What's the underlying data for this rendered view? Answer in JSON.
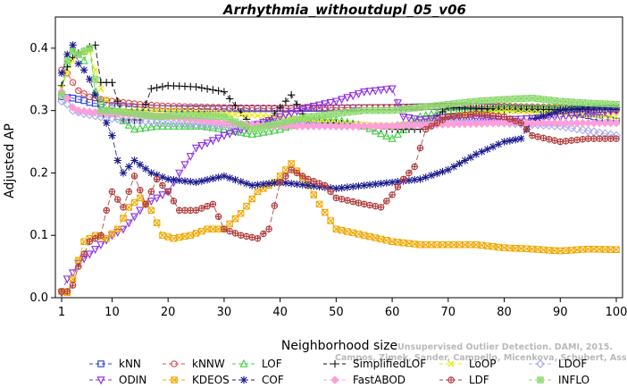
{
  "chart_data": {
    "type": "line",
    "title": "Arrhythmia_withoutdupl_05_v06",
    "xlabel": "Neighborhood size",
    "ylabel": "Adjusted AP",
    "xlim": [
      1,
      100
    ],
    "ylim": [
      0,
      0.45
    ],
    "xticks": [
      "1",
      "10",
      "20",
      "30",
      "40",
      "50",
      "60",
      "70",
      "80",
      "90",
      "100"
    ],
    "yticks": [
      "0.0",
      "0.1",
      "0.2",
      "0.3",
      "0.4"
    ],
    "grid": false,
    "legend_position": "bottom",
    "watermark": [
      "Unsupervised Outlier Detection. DAMI, 2015.",
      "Campos, Zimek, Sander, Campello, Micenkova, Schubert, Assent, Houle"
    ],
    "series": [
      {
        "name": "kNN",
        "color": "#1f3fd6",
        "marker": "square",
        "dash": "6,3",
        "points": [
          [
            1,
            0.322
          ],
          [
            2,
            0.321
          ],
          [
            3,
            0.32
          ],
          [
            4,
            0.318
          ],
          [
            5,
            0.316
          ],
          [
            6,
            0.313
          ],
          [
            8,
            0.31
          ],
          [
            10,
            0.308
          ],
          [
            15,
            0.305
          ],
          [
            20,
            0.303
          ],
          [
            30,
            0.303
          ],
          [
            40,
            0.303
          ],
          [
            50,
            0.304
          ],
          [
            60,
            0.305
          ],
          [
            70,
            0.307
          ],
          [
            80,
            0.305
          ],
          [
            90,
            0.3
          ],
          [
            95,
            0.292
          ],
          [
            100,
            0.283
          ]
        ]
      },
      {
        "name": "kNNW",
        "color": "#d84a4a",
        "marker": "circle",
        "dash": "6,3",
        "points": [
          [
            1,
            0.365
          ],
          [
            2,
            0.36
          ],
          [
            3,
            0.345
          ],
          [
            4,
            0.332
          ],
          [
            6,
            0.322
          ],
          [
            8,
            0.318
          ],
          [
            10,
            0.315
          ],
          [
            15,
            0.31
          ],
          [
            20,
            0.307
          ],
          [
            30,
            0.305
          ],
          [
            40,
            0.304
          ],
          [
            50,
            0.305
          ],
          [
            60,
            0.305
          ],
          [
            70,
            0.307
          ],
          [
            80,
            0.307
          ],
          [
            90,
            0.305
          ],
          [
            100,
            0.3
          ]
        ]
      },
      {
        "name": "LOF",
        "color": "#3fcf3f",
        "marker": "triangle-up",
        "dash": "6,3",
        "points": [
          [
            1,
            0.33
          ],
          [
            2,
            0.375
          ],
          [
            3,
            0.395
          ],
          [
            4,
            0.39
          ],
          [
            5,
            0.38
          ],
          [
            6,
            0.4
          ],
          [
            7,
            0.33
          ],
          [
            9,
            0.3
          ],
          [
            11,
            0.29
          ],
          [
            14,
            0.27
          ],
          [
            18,
            0.275
          ],
          [
            22,
            0.275
          ],
          [
            26,
            0.275
          ],
          [
            30,
            0.27
          ],
          [
            35,
            0.262
          ],
          [
            40,
            0.27
          ],
          [
            45,
            0.285
          ],
          [
            50,
            0.285
          ],
          [
            55,
            0.275
          ],
          [
            60,
            0.255
          ],
          [
            65,
            0.29
          ],
          [
            70,
            0.3
          ],
          [
            80,
            0.305
          ],
          [
            90,
            0.305
          ],
          [
            100,
            0.305
          ]
        ]
      },
      {
        "name": "SimplifiedLOF",
        "color": "#111111",
        "marker": "plus",
        "dash": "6,3",
        "points": [
          [
            1,
            0.34
          ],
          [
            2,
            0.37
          ],
          [
            3,
            0.385
          ],
          [
            4,
            0.392
          ],
          [
            5,
            0.395
          ],
          [
            6,
            0.402
          ],
          [
            7,
            0.405
          ],
          [
            8,
            0.345
          ],
          [
            10,
            0.345
          ],
          [
            12,
            0.285
          ],
          [
            15,
            0.285
          ],
          [
            17,
            0.335
          ],
          [
            20,
            0.34
          ],
          [
            25,
            0.338
          ],
          [
            30,
            0.33
          ],
          [
            35,
            0.275
          ],
          [
            38,
            0.285
          ],
          [
            42,
            0.325
          ],
          [
            45,
            0.28
          ],
          [
            50,
            0.28
          ],
          [
            55,
            0.275
          ],
          [
            60,
            0.27
          ],
          [
            65,
            0.27
          ],
          [
            70,
            0.305
          ],
          [
            80,
            0.302
          ],
          [
            90,
            0.302
          ],
          [
            100,
            0.302
          ]
        ]
      },
      {
        "name": "LoOP",
        "color": "#e8e800",
        "marker": "x",
        "dash": "6,3",
        "points": [
          [
            1,
            0.335
          ],
          [
            2,
            0.36
          ],
          [
            3,
            0.38
          ],
          [
            4,
            0.39
          ],
          [
            6,
            0.395
          ],
          [
            8,
            0.335
          ],
          [
            10,
            0.3
          ],
          [
            12,
            0.3
          ],
          [
            15,
            0.3
          ],
          [
            20,
            0.3
          ],
          [
            30,
            0.295
          ],
          [
            40,
            0.29
          ],
          [
            50,
            0.28
          ],
          [
            60,
            0.275
          ],
          [
            70,
            0.29
          ],
          [
            80,
            0.3
          ],
          [
            90,
            0.295
          ],
          [
            100,
            0.29
          ]
        ]
      },
      {
        "name": "LDOF",
        "color": "#a8a8f0",
        "marker": "diamond",
        "dash": "6,3",
        "points": [
          [
            1,
            0.315
          ],
          [
            2,
            0.31
          ],
          [
            3,
            0.3
          ],
          [
            5,
            0.295
          ],
          [
            8,
            0.29
          ],
          [
            12,
            0.285
          ],
          [
            20,
            0.28
          ],
          [
            30,
            0.275
          ],
          [
            40,
            0.28
          ],
          [
            50,
            0.275
          ],
          [
            60,
            0.275
          ],
          [
            70,
            0.285
          ],
          [
            80,
            0.28
          ],
          [
            90,
            0.275
          ],
          [
            100,
            0.26
          ]
        ]
      },
      {
        "name": "ODIN",
        "color": "#8a2be2",
        "marker": "triangle-down",
        "dash": "6,3",
        "points": [
          [
            1,
            0.008
          ],
          [
            2,
            0.03
          ],
          [
            3,
            0.04
          ],
          [
            4,
            0.055
          ],
          [
            6,
            0.07
          ],
          [
            8,
            0.085
          ],
          [
            10,
            0.1
          ],
          [
            12,
            0.11
          ],
          [
            14,
            0.13
          ],
          [
            16,
            0.15
          ],
          [
            18,
            0.16
          ],
          [
            20,
            0.17
          ],
          [
            22,
            0.2
          ],
          [
            25,
            0.24
          ],
          [
            30,
            0.26
          ],
          [
            35,
            0.275
          ],
          [
            40,
            0.29
          ],
          [
            45,
            0.305
          ],
          [
            50,
            0.315
          ],
          [
            55,
            0.33
          ],
          [
            60,
            0.335
          ],
          [
            62,
            0.29
          ],
          [
            65,
            0.285
          ],
          [
            70,
            0.29
          ],
          [
            80,
            0.285
          ],
          [
            90,
            0.29
          ],
          [
            100,
            0.3
          ]
        ]
      },
      {
        "name": "KDEOS",
        "color": "#f0a800",
        "marker": "square-x",
        "dash": "6,3",
        "points": [
          [
            1,
            0.01
          ],
          [
            2,
            0.008
          ],
          [
            3,
            0.03
          ],
          [
            4,
            0.06
          ],
          [
            5,
            0.09
          ],
          [
            7,
            0.1
          ],
          [
            9,
            0.095
          ],
          [
            11,
            0.11
          ],
          [
            13,
            0.145
          ],
          [
            15,
            0.16
          ],
          [
            17,
            0.14
          ],
          [
            19,
            0.1
          ],
          [
            21,
            0.095
          ],
          [
            24,
            0.1
          ],
          [
            27,
            0.11
          ],
          [
            30,
            0.11
          ],
          [
            33,
            0.135
          ],
          [
            36,
            0.17
          ],
          [
            39,
            0.185
          ],
          [
            42,
            0.215
          ],
          [
            45,
            0.18
          ],
          [
            47,
            0.15
          ],
          [
            50,
            0.11
          ],
          [
            55,
            0.1
          ],
          [
            60,
            0.09
          ],
          [
            65,
            0.085
          ],
          [
            70,
            0.085
          ],
          [
            75,
            0.085
          ],
          [
            80,
            0.08
          ],
          [
            85,
            0.078
          ],
          [
            90,
            0.075
          ],
          [
            95,
            0.078
          ],
          [
            100,
            0.077
          ]
        ]
      },
      {
        "name": "COF",
        "color": "#1a1a8c",
        "marker": "asterisk",
        "dash": "6,3",
        "points": [
          [
            1,
            0.36
          ],
          [
            2,
            0.39
          ],
          [
            3,
            0.405
          ],
          [
            4,
            0.375
          ],
          [
            5,
            0.365
          ],
          [
            6,
            0.35
          ],
          [
            8,
            0.3
          ],
          [
            10,
            0.26
          ],
          [
            11,
            0.22
          ],
          [
            12,
            0.2
          ],
          [
            14,
            0.22
          ],
          [
            17,
            0.2
          ],
          [
            20,
            0.19
          ],
          [
            25,
            0.185
          ],
          [
            30,
            0.195
          ],
          [
            35,
            0.18
          ],
          [
            40,
            0.185
          ],
          [
            45,
            0.18
          ],
          [
            50,
            0.175
          ],
          [
            55,
            0.18
          ],
          [
            60,
            0.185
          ],
          [
            65,
            0.19
          ],
          [
            70,
            0.205
          ],
          [
            75,
            0.23
          ],
          [
            80,
            0.25
          ],
          [
            83,
            0.255
          ],
          [
            85,
            0.285
          ],
          [
            90,
            0.3
          ],
          [
            95,
            0.305
          ],
          [
            100,
            0.305
          ]
        ]
      },
      {
        "name": "FastABOD",
        "color": "#ff9ed8",
        "marker": "diamond-filled",
        "dash": "6,3",
        "points": [
          [
            1,
            0.33
          ],
          [
            2,
            0.32
          ],
          [
            3,
            0.305
          ],
          [
            4,
            0.3
          ],
          [
            6,
            0.298
          ],
          [
            10,
            0.295
          ],
          [
            20,
            0.29
          ],
          [
            30,
            0.28
          ],
          [
            40,
            0.275
          ],
          [
            50,
            0.275
          ],
          [
            60,
            0.275
          ],
          [
            70,
            0.278
          ],
          [
            80,
            0.28
          ],
          [
            90,
            0.28
          ],
          [
            100,
            0.28
          ]
        ]
      },
      {
        "name": "LDF",
        "color": "#b03a3a",
        "marker": "circle-plus",
        "dash": "6,3",
        "points": [
          [
            1,
            0.01
          ],
          [
            2,
            0.01
          ],
          [
            3,
            0.02
          ],
          [
            4,
            0.05
          ],
          [
            6,
            0.09
          ],
          [
            8,
            0.1
          ],
          [
            9,
            0.14
          ],
          [
            10,
            0.17
          ],
          [
            12,
            0.145
          ],
          [
            14,
            0.195
          ],
          [
            16,
            0.15
          ],
          [
            18,
            0.19
          ],
          [
            20,
            0.17
          ],
          [
            22,
            0.14
          ],
          [
            25,
            0.14
          ],
          [
            28,
            0.15
          ],
          [
            30,
            0.11
          ],
          [
            33,
            0.1
          ],
          [
            36,
            0.095
          ],
          [
            38,
            0.11
          ],
          [
            40,
            0.185
          ],
          [
            42,
            0.205
          ],
          [
            45,
            0.19
          ],
          [
            48,
            0.18
          ],
          [
            50,
            0.16
          ],
          [
            55,
            0.15
          ],
          [
            58,
            0.145
          ],
          [
            60,
            0.165
          ],
          [
            62,
            0.19
          ],
          [
            64,
            0.21
          ],
          [
            66,
            0.27
          ],
          [
            70,
            0.29
          ],
          [
            75,
            0.295
          ],
          [
            80,
            0.29
          ],
          [
            83,
            0.28
          ],
          [
            85,
            0.26
          ],
          [
            90,
            0.25
          ],
          [
            95,
            0.255
          ],
          [
            100,
            0.255
          ]
        ]
      },
      {
        "name": "INFLO",
        "color": "#8cd96e",
        "marker": "star-box",
        "dash": "6,3",
        "points": [
          [
            1,
            0.325
          ],
          [
            2,
            0.38
          ],
          [
            3,
            0.395
          ],
          [
            4,
            0.39
          ],
          [
            6,
            0.4
          ],
          [
            8,
            0.3
          ],
          [
            10,
            0.3
          ],
          [
            14,
            0.295
          ],
          [
            18,
            0.29
          ],
          [
            22,
            0.292
          ],
          [
            26,
            0.292
          ],
          [
            30,
            0.29
          ],
          [
            35,
            0.27
          ],
          [
            40,
            0.28
          ],
          [
            45,
            0.29
          ],
          [
            50,
            0.295
          ],
          [
            55,
            0.3
          ],
          [
            60,
            0.3
          ],
          [
            65,
            0.305
          ],
          [
            70,
            0.31
          ],
          [
            75,
            0.315
          ],
          [
            80,
            0.318
          ],
          [
            85,
            0.32
          ],
          [
            90,
            0.315
          ],
          [
            95,
            0.312
          ],
          [
            100,
            0.31
          ]
        ]
      }
    ]
  }
}
